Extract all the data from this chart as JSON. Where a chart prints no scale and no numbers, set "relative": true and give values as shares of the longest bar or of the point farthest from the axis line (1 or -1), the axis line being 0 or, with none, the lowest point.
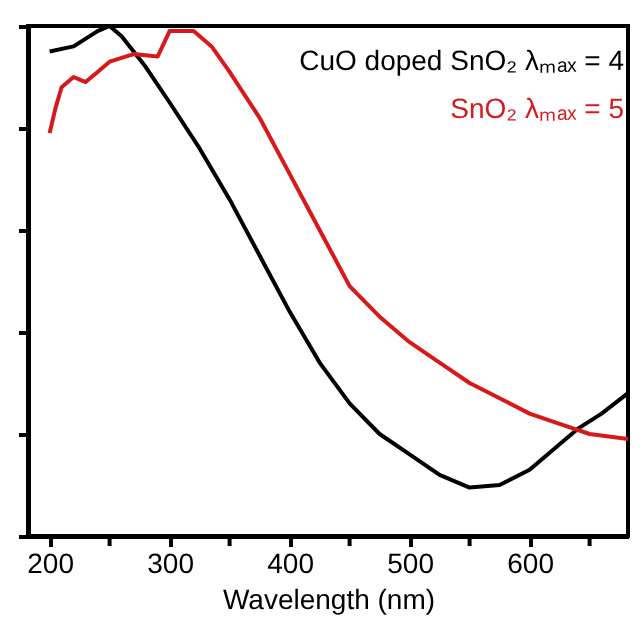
{
  "chart_data": {
    "type": "line",
    "xlabel": "Wavelength (nm)",
    "relative": true,
    "tick_labels": "x",
    "legend": "top right",
    "line_style": "solid",
    "marker": "none",
    "grid": false,
    "xlim": [
      182,
      682
    ],
    "xticks": [
      200,
      {
        "value": 250,
        "label": null
      },
      300,
      {
        "value": 350,
        "label": null
      },
      400,
      {
        "value": 450,
        "label": null
      },
      500,
      {
        "value": 550,
        "label": null
      },
      600,
      {
        "value": 650,
        "label": null
      }
    ],
    "series": [
      {
        "name": "CuO doped SnO₂ λₘₐₓ = 4",
        "color": "#000000",
        "x": [
          200,
          220,
          240,
          250,
          260,
          280,
          300,
          325,
          350,
          375,
          400,
          425,
          450,
          475,
          500,
          525,
          550,
          575,
          600,
          625,
          640,
          660,
          682
        ],
        "values": [
          0.95,
          0.96,
          0.99,
          1.0,
          0.98,
          0.92,
          0.85,
          0.76,
          0.66,
          0.55,
          0.44,
          0.34,
          0.26,
          0.2,
          0.16,
          0.12,
          0.095,
          0.1,
          0.13,
          0.18,
          0.21,
          0.24,
          0.28
        ]
      },
      {
        "name": "SnO₂ λₘₐₓ = 5",
        "color": "#d7191c",
        "x": [
          200,
          205,
          210,
          220,
          230,
          240,
          250,
          270,
          290,
          300,
          320,
          335,
          350,
          375,
          400,
          425,
          450,
          475,
          500,
          525,
          550,
          575,
          600,
          625,
          650,
          682
        ],
        "values": [
          0.79,
          0.84,
          0.88,
          0.9,
          0.89,
          0.91,
          0.93,
          0.945,
          0.94,
          0.99,
          0.99,
          0.96,
          0.91,
          0.82,
          0.71,
          0.6,
          0.49,
          0.43,
          0.38,
          0.34,
          0.3,
          0.27,
          0.24,
          0.22,
          0.2,
          0.19
        ]
      }
    ]
  }
}
